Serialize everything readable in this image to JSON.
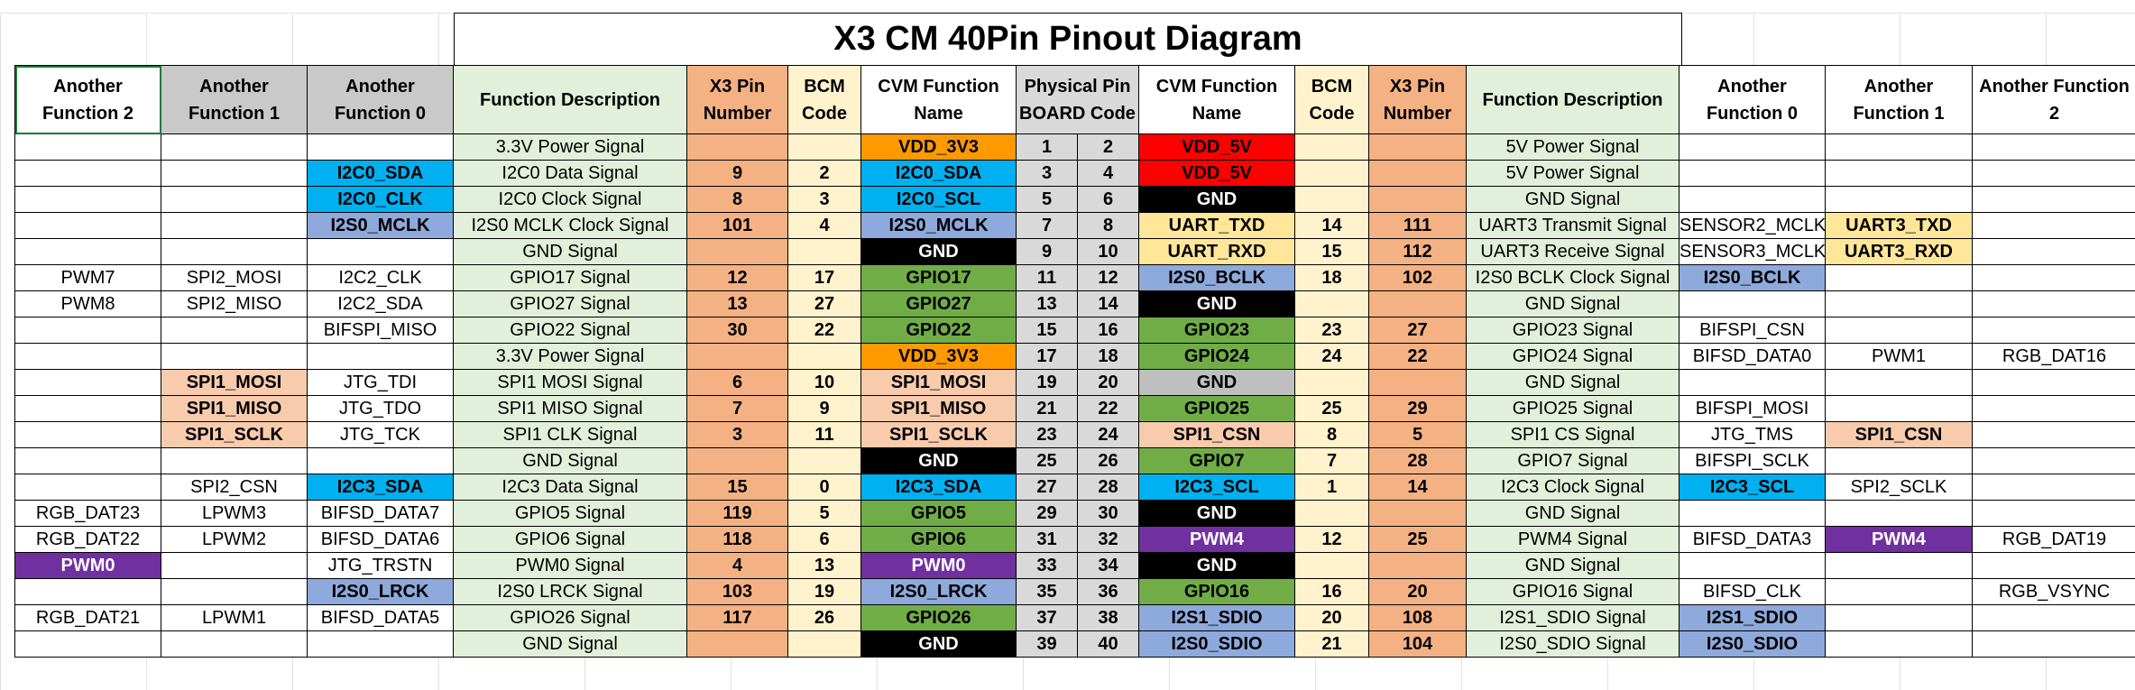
{
  "title": "X3 CM 40Pin Pinout Diagram",
  "colors": {
    "white": "#ffffff",
    "header_gray": "#c9c9c9",
    "func_desc_green": "#e2efda",
    "x3_pin_orange": "#f4b183",
    "bcm_cream": "#fff2cc",
    "physical_gray": "#d9d9d9",
    "cvm_orange": "#ff9900",
    "cvm_red": "#ff0000",
    "cvm_cyan": "#00b0f0",
    "cvm_blue": "#8ea9db",
    "cvm_black": "#000000",
    "cvm_yellow": "#ffe699",
    "cvm_green": "#70ad47",
    "cvm_gray": "#bfbfbf",
    "cvm_peach": "#f8cbad",
    "cvm_purple": "#7030a0"
  },
  "headers": [
    {
      "text": "Another Function 2",
      "bg": "#ffffff"
    },
    {
      "text": "Another Function 1",
      "bg": "#c9c9c9"
    },
    {
      "text": "Another Function 0",
      "bg": "#c9c9c9"
    },
    {
      "text": "Function Description",
      "bg": "#e2efda"
    },
    {
      "text": "X3 Pin Number",
      "bg": "#f4b183"
    },
    {
      "text": "BCM Code",
      "bg": "#fff2cc"
    },
    {
      "text": "CVM Function Name",
      "bg": "#ffffff"
    },
    {
      "text": "Physical Pin BOARD Code",
      "bg": "#d9d9d9",
      "colspan": 2
    },
    {
      "text": "CVM Function Name",
      "bg": "#ffffff"
    },
    {
      "text": "BCM Code",
      "bg": "#fff2cc"
    },
    {
      "text": "X3 Pin Number",
      "bg": "#f4b183"
    },
    {
      "text": "Function Description",
      "bg": "#e2efda"
    },
    {
      "text": "Another Function 0",
      "bg": "#ffffff"
    },
    {
      "text": "Another Function 1",
      "bg": "#ffffff"
    },
    {
      "text": "Another Function 2",
      "bg": "#ffffff"
    }
  ],
  "rows": [
    {
      "left": {
        "af2": [
          "",
          ""
        ],
        "af1": [
          "",
          ""
        ],
        "af0": [
          "",
          ""
        ],
        "desc": "3.3V Power Signal",
        "x3": "",
        "bcm": "",
        "cvm": [
          "VDD_3V3",
          "#ff9900",
          "#000000"
        ]
      },
      "pins": [
        "1",
        "2"
      ],
      "right": {
        "cvm": [
          "VDD_5V",
          "#ff0000",
          "#000000"
        ],
        "bcm": "",
        "x3": "",
        "desc": "5V Power Signal",
        "af0": [
          "",
          ""
        ],
        "af1": [
          "",
          ""
        ],
        "af2": [
          "",
          ""
        ]
      }
    },
    {
      "left": {
        "af2": [
          "",
          ""
        ],
        "af1": [
          "",
          ""
        ],
        "af0": [
          "I2C0_SDA",
          "#00b0f0"
        ],
        "desc": "I2C0 Data Signal",
        "x3": "9",
        "bcm": "2",
        "cvm": [
          "I2C0_SDA",
          "#00b0f0",
          "#000000"
        ]
      },
      "pins": [
        "3",
        "4"
      ],
      "right": {
        "cvm": [
          "VDD_5V",
          "#ff0000",
          "#000000"
        ],
        "bcm": "",
        "x3": "",
        "desc": "5V Power Signal",
        "af0": [
          "",
          ""
        ],
        "af1": [
          "",
          ""
        ],
        "af2": [
          "",
          ""
        ]
      }
    },
    {
      "left": {
        "af2": [
          "",
          ""
        ],
        "af1": [
          "",
          ""
        ],
        "af0": [
          "I2C0_CLK",
          "#00b0f0"
        ],
        "desc": "I2C0 Clock Signal",
        "x3": "8",
        "bcm": "3",
        "cvm": [
          "I2C0_SCL",
          "#00b0f0",
          "#000000"
        ]
      },
      "pins": [
        "5",
        "6"
      ],
      "right": {
        "cvm": [
          "GND",
          "#000000",
          "#ffffff"
        ],
        "bcm": "",
        "x3": "",
        "desc": "GND  Signal",
        "af0": [
          "",
          ""
        ],
        "af1": [
          "",
          ""
        ],
        "af2": [
          "",
          ""
        ]
      }
    },
    {
      "left": {
        "af2": [
          "",
          ""
        ],
        "af1": [
          "",
          ""
        ],
        "af0": [
          "I2S0_MCLK",
          "#8ea9db"
        ],
        "desc": "I2S0 MCLK Clock Signal",
        "x3": "101",
        "bcm": "4",
        "cvm": [
          "I2S0_MCLK",
          "#8ea9db",
          "#000000"
        ]
      },
      "pins": [
        "7",
        "8"
      ],
      "right": {
        "cvm": [
          "UART_TXD",
          "#ffe699",
          "#000000"
        ],
        "bcm": "14",
        "x3": "111",
        "desc": "UART3 Transmit Signal",
        "af0": [
          "SENSOR2_MCLK",
          ""
        ],
        "af1": [
          "UART3_TXD",
          "#ffe699"
        ],
        "af2": [
          "",
          ""
        ]
      }
    },
    {
      "left": {
        "af2": [
          "",
          ""
        ],
        "af1": [
          "",
          ""
        ],
        "af0": [
          "",
          ""
        ],
        "desc": "GND  Signal",
        "x3": "",
        "bcm": "",
        "cvm": [
          "GND",
          "#000000",
          "#ffffff"
        ]
      },
      "pins": [
        "9",
        "10"
      ],
      "right": {
        "cvm": [
          "UART_RXD",
          "#ffe699",
          "#000000"
        ],
        "bcm": "15",
        "x3": "112",
        "desc": "UART3 Receive Signal",
        "af0": [
          "SENSOR3_MCLK",
          ""
        ],
        "af1": [
          "UART3_RXD",
          "#ffe699"
        ],
        "af2": [
          "",
          ""
        ]
      }
    },
    {
      "left": {
        "af2": [
          "PWM7",
          ""
        ],
        "af1": [
          "SPI2_MOSI",
          ""
        ],
        "af0": [
          "I2C2_CLK",
          ""
        ],
        "desc": "GPIO17 Signal",
        "x3": "12",
        "bcm": "17",
        "cvm": [
          "GPIO17",
          "#70ad47",
          "#000000"
        ]
      },
      "pins": [
        "11",
        "12"
      ],
      "right": {
        "cvm": [
          "I2S0_BCLK",
          "#8ea9db",
          "#000000"
        ],
        "bcm": "18",
        "x3": "102",
        "desc": "I2S0 BCLK Clock Signal",
        "af0": [
          "I2S0_BCLK",
          "#8ea9db"
        ],
        "af1": [
          "",
          ""
        ],
        "af2": [
          "",
          ""
        ]
      }
    },
    {
      "left": {
        "af2": [
          "PWM8",
          ""
        ],
        "af1": [
          "SPI2_MISO",
          ""
        ],
        "af0": [
          "I2C2_SDA",
          ""
        ],
        "desc": "GPIO27 Signal",
        "x3": "13",
        "bcm": "27",
        "cvm": [
          "GPIO27",
          "#70ad47",
          "#000000"
        ]
      },
      "pins": [
        "13",
        "14"
      ],
      "right": {
        "cvm": [
          "GND",
          "#000000",
          "#ffffff"
        ],
        "bcm": "",
        "x3": "",
        "desc": "GND  Signal",
        "af0": [
          "",
          ""
        ],
        "af1": [
          "",
          ""
        ],
        "af2": [
          "",
          ""
        ]
      }
    },
    {
      "left": {
        "af2": [
          "",
          ""
        ],
        "af1": [
          "",
          ""
        ],
        "af0": [
          "BIFSPI_MISO",
          ""
        ],
        "desc": "GPIO22 Signal",
        "x3": "30",
        "bcm": "22",
        "cvm": [
          "GPIO22",
          "#70ad47",
          "#000000"
        ]
      },
      "pins": [
        "15",
        "16"
      ],
      "right": {
        "cvm": [
          "GPIO23",
          "#70ad47",
          "#000000"
        ],
        "bcm": "23",
        "x3": "27",
        "desc": "GPIO23 Signal",
        "af0": [
          "BIFSPI_CSN",
          ""
        ],
        "af1": [
          "",
          ""
        ],
        "af2": [
          "",
          ""
        ]
      }
    },
    {
      "left": {
        "af2": [
          "",
          ""
        ],
        "af1": [
          "",
          ""
        ],
        "af0": [
          "",
          ""
        ],
        "desc": "3.3V Power Signal",
        "x3": "",
        "bcm": "",
        "cvm": [
          "VDD_3V3",
          "#ff9900",
          "#000000"
        ]
      },
      "pins": [
        "17",
        "18"
      ],
      "right": {
        "cvm": [
          "GPIO24",
          "#70ad47",
          "#000000"
        ],
        "bcm": "24",
        "x3": "22",
        "desc": "GPIO24 Signal",
        "af0": [
          "BIFSD_DATA0",
          ""
        ],
        "af1": [
          "PWM1",
          ""
        ],
        "af2": [
          "RGB_DAT16",
          ""
        ]
      }
    },
    {
      "left": {
        "af2": [
          "",
          ""
        ],
        "af1": [
          "SPI1_MOSI",
          "#f8cbad"
        ],
        "af0": [
          "JTG_TDI",
          ""
        ],
        "desc": "SPI1 MOSI Signal",
        "x3": "6",
        "bcm": "10",
        "cvm": [
          "SPI1_MOSI",
          "#f8cbad",
          "#000000"
        ]
      },
      "pins": [
        "19",
        "20"
      ],
      "right": {
        "cvm": [
          "GND",
          "#bfbfbf",
          "#000000"
        ],
        "bcm": "",
        "x3": "",
        "desc": "GND  Signal",
        "af0": [
          "",
          ""
        ],
        "af1": [
          "",
          ""
        ],
        "af2": [
          "",
          ""
        ]
      }
    },
    {
      "left": {
        "af2": [
          "",
          ""
        ],
        "af1": [
          "SPI1_MISO",
          "#f8cbad"
        ],
        "af0": [
          "JTG_TDO",
          ""
        ],
        "desc": "SPI1 MISO Signal",
        "x3": "7",
        "bcm": "9",
        "cvm": [
          "SPI1_MISO",
          "#f8cbad",
          "#000000"
        ]
      },
      "pins": [
        "21",
        "22"
      ],
      "right": {
        "cvm": [
          "GPIO25",
          "#70ad47",
          "#000000"
        ],
        "bcm": "25",
        "x3": "29",
        "desc": "GPIO25 Signal",
        "af0": [
          "BIFSPI_MOSI",
          ""
        ],
        "af1": [
          "",
          ""
        ],
        "af2": [
          "",
          ""
        ]
      }
    },
    {
      "left": {
        "af2": [
          "",
          ""
        ],
        "af1": [
          "SPI1_SCLK",
          "#f8cbad"
        ],
        "af0": [
          "JTG_TCK",
          ""
        ],
        "desc": "SPI1 CLK Signal",
        "x3": "3",
        "bcm": "11",
        "cvm": [
          "SPI1_SCLK",
          "#f8cbad",
          "#000000"
        ]
      },
      "pins": [
        "23",
        "24"
      ],
      "right": {
        "cvm": [
          "SPI1_CSN",
          "#f8cbad",
          "#000000"
        ],
        "bcm": "8",
        "x3": "5",
        "desc": "SPI1 CS Signal",
        "af0": [
          "JTG_TMS",
          ""
        ],
        "af1": [
          "SPI1_CSN",
          "#f8cbad"
        ],
        "af2": [
          "",
          ""
        ]
      }
    },
    {
      "left": {
        "af2": [
          "",
          ""
        ],
        "af1": [
          "",
          ""
        ],
        "af0": [
          "",
          ""
        ],
        "desc": "GND  Signal",
        "x3": "",
        "bcm": "",
        "cvm": [
          "GND",
          "#000000",
          "#ffffff"
        ]
      },
      "pins": [
        "25",
        "26"
      ],
      "right": {
        "cvm": [
          "GPIO7",
          "#70ad47",
          "#000000"
        ],
        "bcm": "7",
        "x3": "28",
        "desc": "GPIO7 Signal",
        "af0": [
          "BIFSPI_SCLK",
          ""
        ],
        "af1": [
          "",
          ""
        ],
        "af2": [
          "",
          ""
        ]
      }
    },
    {
      "left": {
        "af2": [
          "",
          ""
        ],
        "af1": [
          "SPI2_CSN",
          ""
        ],
        "af0": [
          "I2C3_SDA",
          "#00b0f0"
        ],
        "desc": "I2C3 Data Signal",
        "x3": "15",
        "bcm": "0",
        "cvm": [
          "I2C3_SDA",
          "#00b0f0",
          "#000000"
        ]
      },
      "pins": [
        "27",
        "28"
      ],
      "right": {
        "cvm": [
          "I2C3_SCL",
          "#00b0f0",
          "#000000"
        ],
        "bcm": "1",
        "x3": "14",
        "desc": "I2C3 Clock Signal",
        "af0": [
          "I2C3_SCL",
          "#00b0f0"
        ],
        "af1": [
          "SPI2_SCLK",
          ""
        ],
        "af2": [
          "",
          ""
        ]
      }
    },
    {
      "left": {
        "af2": [
          "RGB_DAT23",
          ""
        ],
        "af1": [
          "LPWM3",
          ""
        ],
        "af0": [
          "BIFSD_DATA7",
          ""
        ],
        "desc": "GPIO5 Signal",
        "x3": "119",
        "bcm": "5",
        "cvm": [
          "GPIO5",
          "#70ad47",
          "#000000"
        ]
      },
      "pins": [
        "29",
        "30"
      ],
      "right": {
        "cvm": [
          "GND",
          "#000000",
          "#ffffff"
        ],
        "bcm": "",
        "x3": "",
        "desc": "GND  Signal",
        "af0": [
          "",
          ""
        ],
        "af1": [
          "",
          ""
        ],
        "af2": [
          "",
          ""
        ]
      }
    },
    {
      "left": {
        "af2": [
          "RGB_DAT22",
          ""
        ],
        "af1": [
          "LPWM2",
          ""
        ],
        "af0": [
          "BIFSD_DATA6",
          ""
        ],
        "desc": "GPIO6 Signal",
        "x3": "118",
        "bcm": "6",
        "cvm": [
          "GPIO6",
          "#70ad47",
          "#000000"
        ]
      },
      "pins": [
        "31",
        "32"
      ],
      "right": {
        "cvm": [
          "PWM4",
          "#7030a0",
          "#ffffff"
        ],
        "bcm": "12",
        "x3": "25",
        "desc": "PWM4 Signal",
        "af0": [
          "BIFSD_DATA3",
          ""
        ],
        "af1": [
          "PWM4",
          "#7030a0"
        ],
        "af2": [
          "RGB_DAT19",
          ""
        ]
      }
    },
    {
      "left": {
        "af2": [
          "PWM0",
          "#7030a0"
        ],
        "af1": [
          "",
          ""
        ],
        "af0": [
          "JTG_TRSTN",
          ""
        ],
        "desc": "PWM0 Signal",
        "x3": "4",
        "bcm": "13",
        "cvm": [
          "PWM0",
          "#7030a0",
          "#ffffff"
        ]
      },
      "pins": [
        "33",
        "34"
      ],
      "right": {
        "cvm": [
          "GND",
          "#000000",
          "#ffffff"
        ],
        "bcm": "",
        "x3": "",
        "desc": "GND  Signal",
        "af0": [
          "",
          ""
        ],
        "af1": [
          "",
          ""
        ],
        "af2": [
          "",
          ""
        ]
      }
    },
    {
      "left": {
        "af2": [
          "",
          ""
        ],
        "af1": [
          "",
          ""
        ],
        "af0": [
          "I2S0_LRCK",
          "#8ea9db"
        ],
        "desc": "I2S0 LRCK Signal",
        "x3": "103",
        "bcm": "19",
        "cvm": [
          "I2S0_LRCK",
          "#8ea9db",
          "#000000"
        ]
      },
      "pins": [
        "35",
        "36"
      ],
      "right": {
        "cvm": [
          "GPIO16",
          "#70ad47",
          "#000000"
        ],
        "bcm": "16",
        "x3": "20",
        "desc": "GPIO16 Signal",
        "af0": [
          "BIFSD_CLK",
          ""
        ],
        "af1": [
          "",
          ""
        ],
        "af2": [
          "RGB_VSYNC",
          ""
        ]
      }
    },
    {
      "left": {
        "af2": [
          "RGB_DAT21",
          ""
        ],
        "af1": [
          "LPWM1",
          ""
        ],
        "af0": [
          "BIFSD_DATA5",
          ""
        ],
        "desc": "GPIO26 Signal",
        "x3": "117",
        "bcm": "26",
        "cvm": [
          "GPIO26",
          "#70ad47",
          "#000000"
        ]
      },
      "pins": [
        "37",
        "38"
      ],
      "right": {
        "cvm": [
          "I2S1_SDIO",
          "#8ea9db",
          "#000000"
        ],
        "bcm": "20",
        "x3": "108",
        "desc": "I2S1_SDIO Signal",
        "af0": [
          "I2S1_SDIO",
          "#8ea9db"
        ],
        "af1": [
          "",
          ""
        ],
        "af2": [
          "",
          ""
        ]
      }
    },
    {
      "left": {
        "af2": [
          "",
          ""
        ],
        "af1": [
          "",
          ""
        ],
        "af0": [
          "",
          ""
        ],
        "desc": "GND  Signal",
        "x3": "",
        "bcm": "",
        "cvm": [
          "GND",
          "#000000",
          "#ffffff"
        ]
      },
      "pins": [
        "39",
        "40"
      ],
      "right": {
        "cvm": [
          "I2S0_SDIO",
          "#8ea9db",
          "#000000"
        ],
        "bcm": "21",
        "x3": "104",
        "desc": "I2S0_SDIO Signal",
        "af0": [
          "I2S0_SDIO",
          "#8ea9db"
        ],
        "af1": [
          "",
          ""
        ],
        "af2": [
          "",
          ""
        ]
      }
    }
  ]
}
